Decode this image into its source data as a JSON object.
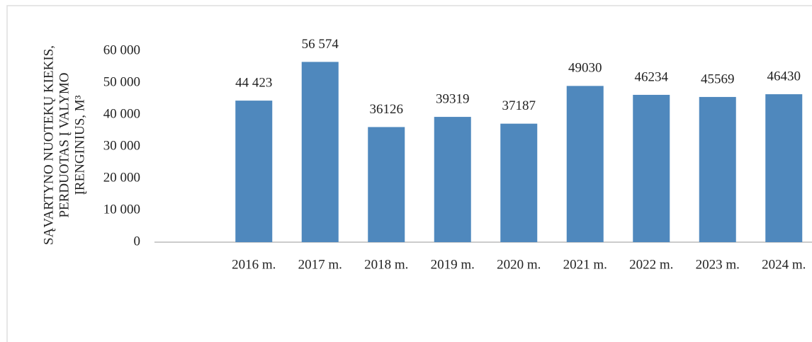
{
  "chart_data": {
    "type": "bar",
    "ylabel": [
      "SĄVARTYNO NUOTEKŲ KIEKIS,",
      "PERDUOTAS Į VALYMO",
      "ĮRENGINIUS, M³"
    ],
    "categories": [
      null,
      "2016 m.",
      "2017 m.",
      "2018 m.",
      "2019 m.",
      "2020 m.",
      "2021 m.",
      "2022 m.",
      "2023 m.",
      "2024 m."
    ],
    "values": [
      null,
      44423,
      56574,
      36126,
      39319,
      37187,
      49030,
      46234,
      45569,
      46430
    ],
    "value_labels": [
      null,
      "44 423",
      "56 574",
      "36126",
      "39319",
      "37187",
      "49030",
      "46234",
      "45569",
      "46430"
    ],
    "color": "#4f88bd",
    "ylim": [
      0,
      60000
    ],
    "yticks": [
      0,
      {
        "value": 10000,
        "label": "10 000"
      },
      {
        "value": 20000,
        "label": "20 000"
      },
      {
        "value": 30000,
        "label": "30 000"
      },
      {
        "value": 40000,
        "label": "40 000"
      },
      {
        "value": 50000,
        "label": "50 000"
      },
      {
        "value": 60000,
        "label": "60 000"
      }
    ],
    "grid": false
  }
}
